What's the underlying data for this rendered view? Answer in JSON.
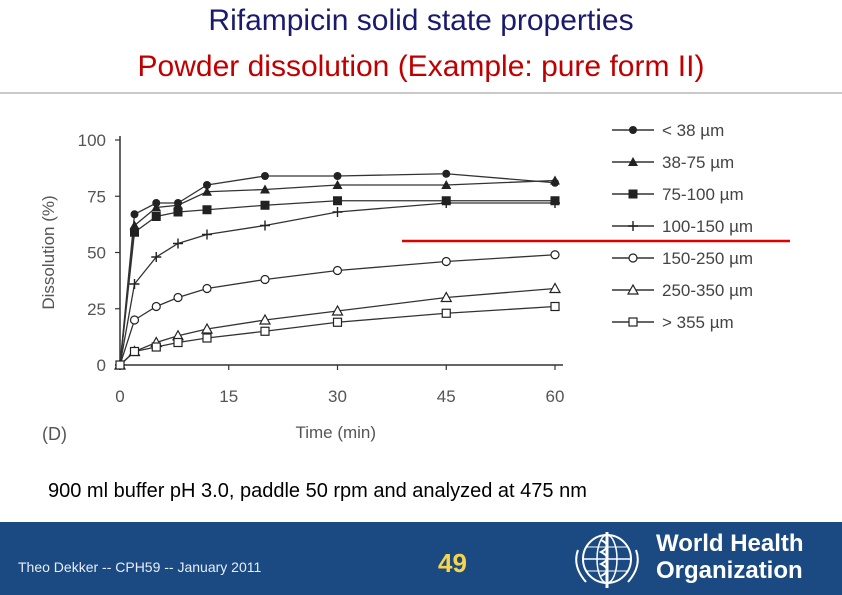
{
  "slide": {
    "title_line1": "Rifampicin solid state properties",
    "title_line2": "Powder dissolution (Example: pure form II)",
    "condition_note": "900 ml buffer pH 3.0, paddle 50 rpm and analyzed at 475 nm"
  },
  "footer": {
    "author_text": "Theo Dekker -- CPH59 -- January 2011",
    "page_number": "49",
    "org_line1": "World Health",
    "org_line2": "Organization",
    "background_color": "#1b4a82",
    "page_number_color": "#f5d64a"
  },
  "chart_data": {
    "type": "line",
    "panel_label": "(D)",
    "xlabel": "Time (min)",
    "ylabel": "Dissolution (%)",
    "xlim": [
      0,
      60
    ],
    "ylim": [
      0,
      100
    ],
    "x_ticks": [
      0,
      15,
      30,
      45,
      60
    ],
    "y_ticks": [
      0,
      25,
      50,
      75,
      100
    ],
    "grid": false,
    "legend_position": "top-right",
    "x": [
      0,
      2,
      5,
      8,
      12,
      20,
      30,
      45,
      60
    ],
    "series": [
      {
        "name": "< 38 µm",
        "marker": "filled-circle",
        "values": [
          0,
          67,
          72,
          72,
          80,
          84,
          84,
          85,
          81
        ]
      },
      {
        "name": "38-75 µm",
        "marker": "filled-triangle",
        "values": [
          0,
          62,
          70,
          71,
          77,
          78,
          80,
          80,
          82
        ]
      },
      {
        "name": "75-100 µm",
        "marker": "filled-square",
        "values": [
          0,
          59,
          66,
          68,
          69,
          71,
          73,
          73,
          73
        ]
      },
      {
        "name": "100-150 µm",
        "marker": "plus",
        "values": [
          0,
          36,
          48,
          54,
          58,
          62,
          68,
          72,
          72
        ]
      },
      {
        "name": "150-250 µm",
        "marker": "open-circle",
        "values": [
          0,
          20,
          26,
          30,
          34,
          38,
          42,
          46,
          49
        ]
      },
      {
        "name": "250-350 µm",
        "marker": "open-triangle",
        "values": [
          0,
          6,
          10,
          13,
          16,
          20,
          24,
          30,
          34
        ]
      },
      {
        "name": "> 355 µm",
        "marker": "open-square",
        "values": [
          0,
          6,
          8,
          10,
          12,
          15,
          19,
          23,
          26
        ]
      }
    ],
    "annotation": {
      "type": "horizontal-line",
      "color": "#e00000"
    }
  }
}
